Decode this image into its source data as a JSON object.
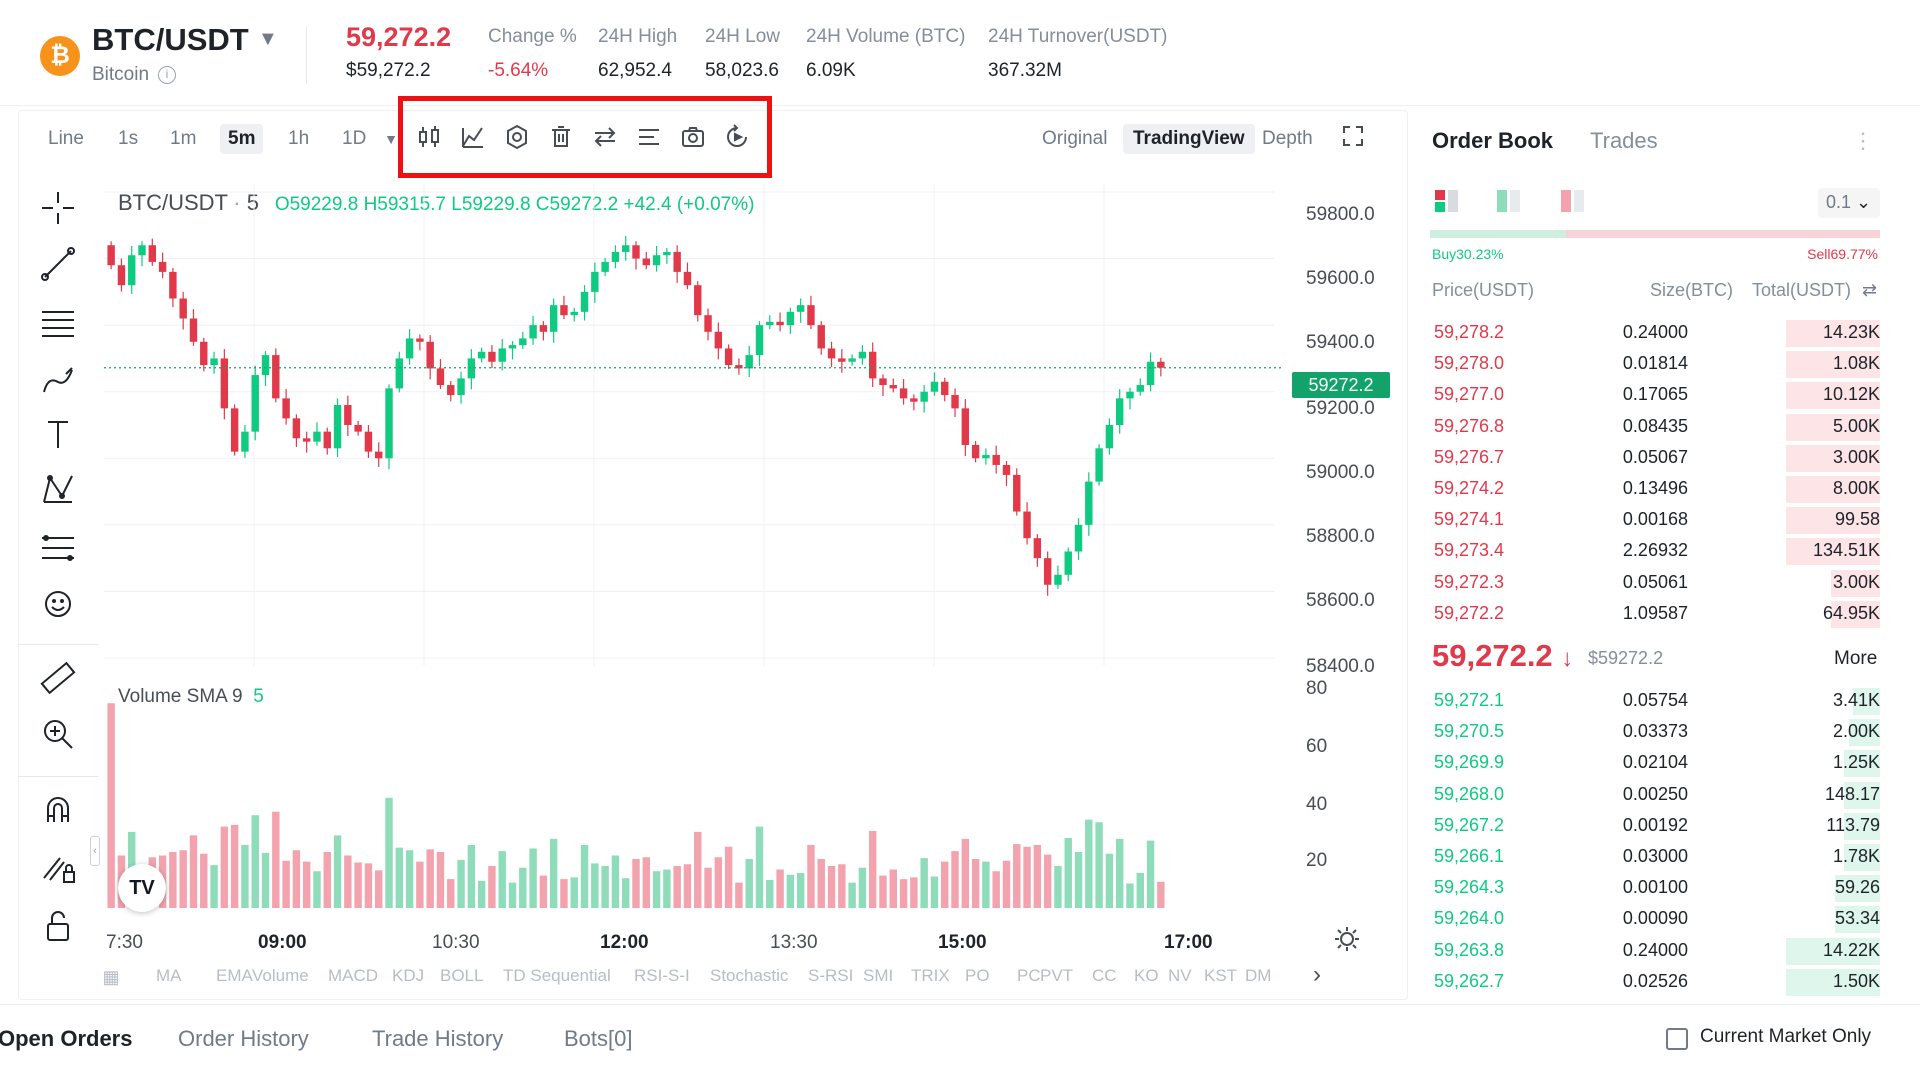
{
  "header": {
    "pair": "BTC/USDT",
    "coin_name": "Bitcoin",
    "last_price": "59,272.2",
    "last_price_usd": "$59,272.2",
    "stats": [
      {
        "label": "Change %",
        "value": "-5.64%"
      },
      {
        "label": "24H High",
        "value": "62,952.4"
      },
      {
        "label": "24H Low",
        "value": "58,023.6"
      },
      {
        "label": "24H Volume (BTC)",
        "value": "6.09K"
      },
      {
        "label": "24H Turnover(USDT)",
        "value": "367.32M"
      }
    ]
  },
  "toolbar": {
    "timeframes": [
      "Line",
      "1s",
      "1m",
      "5m",
      "1h",
      "1D"
    ],
    "active_timeframe": "5m",
    "views": [
      "Original",
      "TradingView",
      "Depth"
    ],
    "active_view": "TradingView"
  },
  "chart": {
    "symbol": "BTC/USDT",
    "interval": "5",
    "open": "O59229.8",
    "high": "H59315.7",
    "low": "L59229.8",
    "close": "C59272.2",
    "change": "+42.4 (+0.07%)",
    "current_price_tag": "59272.2",
    "volume_label": "Volume SMA 9",
    "volume_value": "5",
    "y_ticks": [
      "59800.0",
      "59600.0",
      "59400.0",
      "59200.0",
      "59000.0",
      "58800.0",
      "58600.0",
      "58400.0"
    ],
    "vol_ticks": [
      "80",
      "60",
      "40",
      "20"
    ],
    "x_ticks": [
      "7:30",
      "09:00",
      "10:30",
      "12:00",
      "13:30",
      "15:00",
      "17:00"
    ],
    "indicators": [
      "MA",
      "EMA",
      "Volume",
      "MACD",
      "KDJ",
      "BOLL",
      "TD Sequential",
      "RSI-S-I",
      "Stochastic",
      "S-RSI",
      "SMI",
      "TRIX",
      "PO",
      "PC",
      "PVT",
      "CC",
      "KO",
      "NV",
      "KST",
      "DM"
    ]
  },
  "chart_data": {
    "type": "candlestick",
    "interval": "5m",
    "x_range": [
      "07:30",
      "17:30"
    ],
    "ylim": [
      58400,
      59800
    ],
    "closes": [
      59580,
      59520,
      59610,
      59640,
      59590,
      59560,
      59480,
      59420,
      59350,
      59280,
      59300,
      59150,
      59020,
      59080,
      59250,
      59310,
      59180,
      59120,
      59060,
      59050,
      59080,
      59030,
      59160,
      59100,
      59080,
      59020,
      59000,
      59210,
      59300,
      59360,
      59350,
      59270,
      59220,
      59190,
      59240,
      59300,
      59320,
      59290,
      59330,
      59340,
      59360,
      59400,
      59380,
      59460,
      59430,
      59440,
      59500,
      59560,
      59590,
      59620,
      59640,
      59600,
      59580,
      59610,
      59620,
      59560,
      59520,
      59430,
      59380,
      59330,
      59280,
      59270,
      59310,
      59400,
      59410,
      59400,
      59440,
      59460,
      59400,
      59330,
      59300,
      59290,
      59300,
      59320,
      59240,
      59220,
      59210,
      59180,
      59170,
      59200,
      59230,
      59190,
      59150,
      59040,
      59000,
      59010,
      58980,
      58950,
      58840,
      58760,
      58700,
      58620,
      58650,
      58720,
      58800,
      58930,
      59030,
      59100,
      59180,
      59200,
      59220,
      59290,
      59272
    ],
    "volume_ylim": [
      0,
      80
    ],
    "volume_series_name": "Volume SMA 9"
  },
  "order_book": {
    "tabs": [
      "Order Book",
      "Trades"
    ],
    "precision": "0.1",
    "buy_ratio": "Buy30.23%",
    "sell_ratio": "Sell69.77%",
    "buy_fraction": 0.3023,
    "columns": [
      "Price(USDT)",
      "Size(BTC)",
      "Total(USDT)"
    ],
    "asks": [
      {
        "price": "59,278.2",
        "size": "0.24000",
        "total": "14.23K",
        "depth": 0.21
      },
      {
        "price": "59,278.0",
        "size": "0.01814",
        "total": "1.08K",
        "depth": 0.21
      },
      {
        "price": "59,277.0",
        "size": "0.17065",
        "total": "10.12K",
        "depth": 0.21
      },
      {
        "price": "59,276.8",
        "size": "0.08435",
        "total": "5.00K",
        "depth": 0.21
      },
      {
        "price": "59,276.7",
        "size": "0.05067",
        "total": "3.00K",
        "depth": 0.21
      },
      {
        "price": "59,274.2",
        "size": "0.13496",
        "total": "8.00K",
        "depth": 0.21
      },
      {
        "price": "59,274.1",
        "size": "0.00168",
        "total": "99.58",
        "depth": 0.21
      },
      {
        "price": "59,273.4",
        "size": "2.26932",
        "total": "134.51K",
        "depth": 0.21
      },
      {
        "price": "59,272.3",
        "size": "0.05061",
        "total": "3.00K",
        "depth": 0.11
      },
      {
        "price": "59,272.2",
        "size": "1.09587",
        "total": "64.95K",
        "depth": 0.11
      }
    ],
    "mid_price": "59,272.2",
    "mid_price_usd": "$59272.2",
    "more_label": "More",
    "bids": [
      {
        "price": "59,272.1",
        "size": "0.05754",
        "total": "3.41K",
        "depth": 0.06
      },
      {
        "price": "59,270.5",
        "size": "0.03373",
        "total": "2.00K",
        "depth": 0.07
      },
      {
        "price": "59,269.9",
        "size": "0.02104",
        "total": "1.25K",
        "depth": 0.08
      },
      {
        "price": "59,268.0",
        "size": "0.00250",
        "total": "148.17",
        "depth": 0.08
      },
      {
        "price": "59,267.2",
        "size": "0.00192",
        "total": "113.79",
        "depth": 0.08
      },
      {
        "price": "59,266.1",
        "size": "0.03000",
        "total": "1.78K",
        "depth": 0.08
      },
      {
        "price": "59,264.3",
        "size": "0.00100",
        "total": "59.26",
        "depth": 0.1
      },
      {
        "price": "59,264.0",
        "size": "0.00090",
        "total": "53.34",
        "depth": 0.1
      },
      {
        "price": "59,263.8",
        "size": "0.24000",
        "total": "14.22K",
        "depth": 0.21
      },
      {
        "price": "59,262.7",
        "size": "0.02526",
        "total": "1.50K",
        "depth": 0.21
      }
    ]
  },
  "bottom_tabs": [
    "Open Orders",
    "Order History",
    "Trade History",
    "Bots[0]"
  ],
  "current_market_only": "Current Market Only",
  "colors": {
    "up": "#0ecb81",
    "down": "#e2394a",
    "up_vol": "#8fdcbb",
    "down_vol": "#f2a3ad",
    "highlight": "#ee1111"
  }
}
